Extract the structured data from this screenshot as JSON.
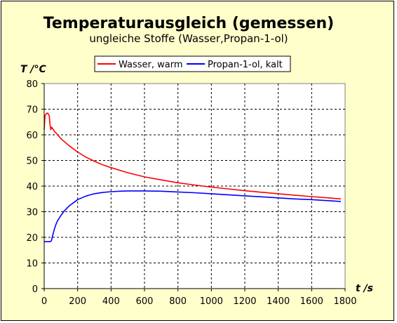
{
  "chart_data": {
    "type": "line",
    "title": "Temperaturausgleich (gemessen)",
    "subtitle": "ungleiche Stoffe (Wasser,Propan-1-ol)",
    "xlabel": "t /s",
    "ylabel": "T /°C",
    "xlim": [
      0,
      1800
    ],
    "ylim": [
      0,
      80
    ],
    "xticks": [
      0,
      200,
      400,
      600,
      800,
      1000,
      1200,
      1400,
      1600,
      1800
    ],
    "yticks": [
      0,
      10,
      20,
      30,
      40,
      50,
      60,
      70,
      80
    ],
    "grid": true,
    "legend_position": "top-center",
    "background": "#ffffcc",
    "plot_background": "#ffffff",
    "series": [
      {
        "name": "Wasser, warm",
        "color": "#ff0000",
        "x": [
          0,
          5,
          10,
          15,
          20,
          25,
          30,
          35,
          40,
          45,
          50,
          60,
          80,
          100,
          150,
          200,
          250,
          300,
          350,
          400,
          450,
          500,
          600,
          700,
          800,
          900,
          1000,
          1100,
          1200,
          1300,
          1400,
          1500,
          1600,
          1700,
          1775
        ],
        "y": [
          62,
          67.5,
          68,
          68.3,
          68.5,
          68,
          67.5,
          64,
          62,
          63,
          62.5,
          61.5,
          60,
          58.5,
          55.7,
          53.3,
          51.3,
          49.7,
          48.3,
          47.2,
          46.2,
          45.2,
          43.6,
          42.4,
          41.3,
          40.4,
          39.6,
          38.9,
          38.2,
          37.6,
          37,
          36.4,
          35.9,
          35.4,
          35
        ]
      },
      {
        "name": "Propan-1-ol, kalt",
        "color": "#0000ff",
        "x": [
          0,
          10,
          20,
          30,
          40,
          45,
          50,
          60,
          70,
          80,
          100,
          120,
          150,
          200,
          250,
          300,
          350,
          400,
          450,
          500,
          550,
          600,
          700,
          800,
          900,
          1000,
          1100,
          1200,
          1300,
          1400,
          1500,
          1600,
          1700,
          1775
        ],
        "y": [
          18.3,
          18.3,
          18.3,
          18.3,
          18.4,
          19,
          20.5,
          23,
          25,
          26.5,
          28.5,
          30.3,
          32.3,
          34.7,
          36.1,
          37,
          37.5,
          37.8,
          38,
          38.1,
          38.1,
          38.1,
          38,
          37.7,
          37.4,
          37,
          36.6,
          36.2,
          35.8,
          35.4,
          35,
          34.7,
          34.3,
          34
        ]
      }
    ]
  }
}
